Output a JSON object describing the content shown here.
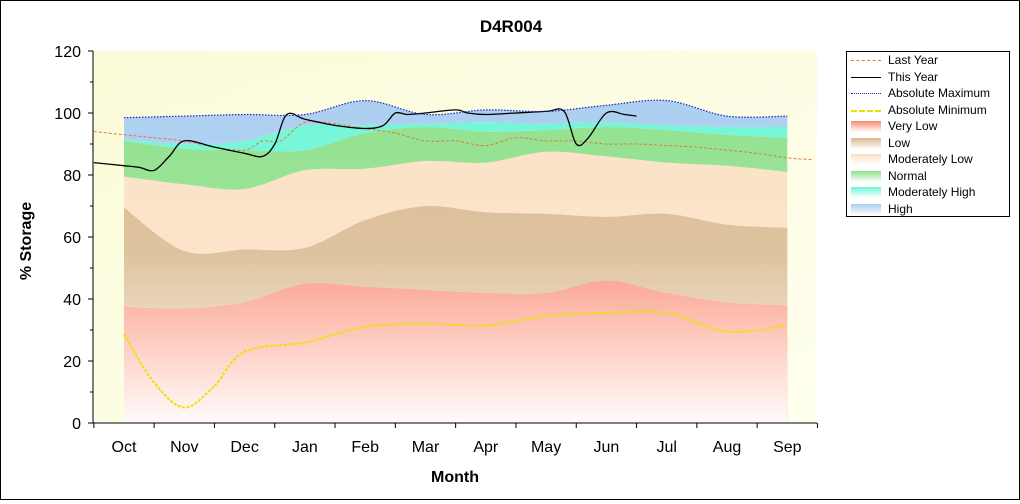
{
  "chart_data": {
    "type": "area",
    "title": "D4R004",
    "xlabel": "Month",
    "ylabel": "% Storage",
    "ylim": [
      0,
      120
    ],
    "yticks": [
      0,
      20,
      40,
      60,
      80,
      100,
      120
    ],
    "categories": [
      "Oct",
      "Nov",
      "Dec",
      "Jan",
      "Feb",
      "Mar",
      "Apr",
      "May",
      "Jun",
      "Jul",
      "Aug",
      "Sep"
    ],
    "bands": [
      {
        "name": "Very Low",
        "color": "#f98a70",
        "lower": [
          0,
          0,
          0,
          0,
          0,
          0,
          0,
          0,
          0,
          0,
          0,
          0
        ],
        "upper": [
          37.5,
          37,
          39,
          45,
          44,
          43,
          42,
          42,
          46,
          42,
          39,
          38
        ]
      },
      {
        "name": "Low",
        "color": "#d9b98f",
        "lower": [
          37.5,
          37,
          39,
          45,
          44,
          43,
          42,
          42,
          46,
          42,
          39,
          38
        ],
        "upper": [
          69.5,
          55.5,
          56,
          56.5,
          65.5,
          70,
          68,
          67.5,
          66.5,
          67.5,
          64,
          63
        ]
      },
      {
        "name": "Moderately Low",
        "color": "#fbe0c3",
        "lower": [
          69.5,
          55.5,
          56,
          56.5,
          65.5,
          70,
          68,
          67.5,
          66.5,
          67.5,
          64,
          63
        ],
        "upper": [
          79.5,
          77,
          75.5,
          81.5,
          82,
          84.5,
          84,
          87.5,
          86,
          84,
          83,
          81
        ]
      },
      {
        "name": "Normal",
        "color": "#8ee08b",
        "lower": [
          79.5,
          77,
          75.5,
          81.5,
          82,
          84.5,
          84,
          87.5,
          86,
          84,
          83,
          81
        ],
        "upper": [
          91,
          88.5,
          88,
          88,
          93.5,
          95.5,
          94,
          94.5,
          95.5,
          94.5,
          93,
          92
        ]
      },
      {
        "name": "Moderately High",
        "color": "#6ef5d6",
        "lower": [
          91,
          88.5,
          88,
          88,
          93.5,
          95.5,
          94,
          94.5,
          95.5,
          94.5,
          93,
          92
        ],
        "upper": [
          91.5,
          90,
          91,
          96,
          96,
          96.5,
          97,
          96.5,
          97,
          96,
          95.5,
          95.5
        ]
      },
      {
        "name": "High",
        "color": "#a9cdf0",
        "lower": [
          91.5,
          90,
          91,
          96,
          96,
          96.5,
          97,
          96.5,
          97,
          96,
          95.5,
          95.5
        ],
        "upper": [
          98.5,
          99,
          99.5,
          99.5,
          104,
          99.5,
          101,
          100.5,
          102.5,
          104,
          99,
          99
        ]
      }
    ],
    "series": [
      {
        "name": "Last Year",
        "color": "#e07a3a",
        "dash": "3,2",
        "width": 1,
        "x": [
          -0.5,
          0,
          0.5,
          1,
          1.5,
          2,
          2.3,
          2.6,
          3,
          3.5,
          4,
          4.5,
          5,
          5.5,
          6,
          6.5,
          7,
          7.5,
          8,
          8.5,
          9,
          9.5,
          10,
          10.5,
          11,
          11.4
        ],
        "y": [
          94,
          93,
          92,
          91,
          89,
          88,
          91,
          91,
          97,
          96.5,
          95,
          93.5,
          91,
          91,
          89.5,
          92,
          91,
          91,
          90,
          90,
          89.5,
          89,
          88,
          87,
          85.5,
          85
        ]
      },
      {
        "name": "This Year",
        "color": "#000000",
        "dash": "",
        "width": 1.3,
        "x": [
          -0.5,
          0,
          0.25,
          0.5,
          0.75,
          1,
          1.5,
          2,
          2.3,
          2.5,
          2.7,
          3,
          3.5,
          4,
          4.3,
          4.5,
          4.7,
          5,
          5.5,
          5.7,
          6,
          6.5,
          7,
          7.3,
          7.5,
          7.7,
          8,
          8.3,
          8.5
        ],
        "y": [
          84,
          83,
          82.5,
          81.5,
          86,
          91,
          89,
          87,
          86,
          90,
          99.5,
          98,
          96,
          95,
          96,
          100,
          99.5,
          100,
          101,
          100,
          99.5,
          100,
          100.5,
          100.5,
          90,
          92,
          100,
          99.5,
          99
        ]
      },
      {
        "name": "Absolute Maximum",
        "color": "#2020c0",
        "dash": "1.5,1.5",
        "width": 1.2,
        "x": [
          0,
          1,
          2,
          3,
          4,
          5,
          6,
          7,
          8,
          9,
          10,
          11
        ],
        "y": [
          98.5,
          99,
          99.5,
          99.5,
          104,
          99.5,
          101,
          100.5,
          102.5,
          104,
          99,
          99
        ]
      },
      {
        "name": "Absolute Minimum",
        "color": "#f0e000",
        "dash": "3,1.5",
        "width": 2,
        "x": [
          0,
          0.5,
          1,
          1.5,
          2,
          3,
          4,
          5,
          6,
          7,
          8,
          9,
          10,
          11
        ],
        "y": [
          28.5,
          13,
          5,
          12,
          23,
          26,
          31,
          32,
          31.5,
          34.5,
          35.5,
          35.5,
          29.5,
          31.5
        ]
      }
    ],
    "legend": [
      {
        "label": "Last Year",
        "kind": "line",
        "color": "#e07a3a",
        "dash": "3,2",
        "width": 1
      },
      {
        "label": "This Year",
        "kind": "line",
        "color": "#000000",
        "dash": "",
        "width": 1.3
      },
      {
        "label": "Absolute Maximum",
        "kind": "line",
        "color": "#2020c0",
        "dash": "1.5,1.5",
        "width": 1.2
      },
      {
        "label": "Absolute Minimum",
        "kind": "line",
        "color": "#f0e000",
        "dash": "3,1.5",
        "width": 2
      },
      {
        "label": "Very Low",
        "kind": "swatch",
        "color": "#f98a70"
      },
      {
        "label": "Low",
        "kind": "swatch",
        "color": "#d9b98f"
      },
      {
        "label": "Moderately Low",
        "kind": "swatch",
        "color": "#fbe0c3"
      },
      {
        "label": "Normal",
        "kind": "swatch",
        "color": "#8ee08b"
      },
      {
        "label": "Moderately High",
        "kind": "swatch",
        "color": "#6ef5d6"
      },
      {
        "label": "High",
        "kind": "swatch",
        "color": "#a9cdf0"
      }
    ],
    "legend_position": "right",
    "grid": false
  }
}
